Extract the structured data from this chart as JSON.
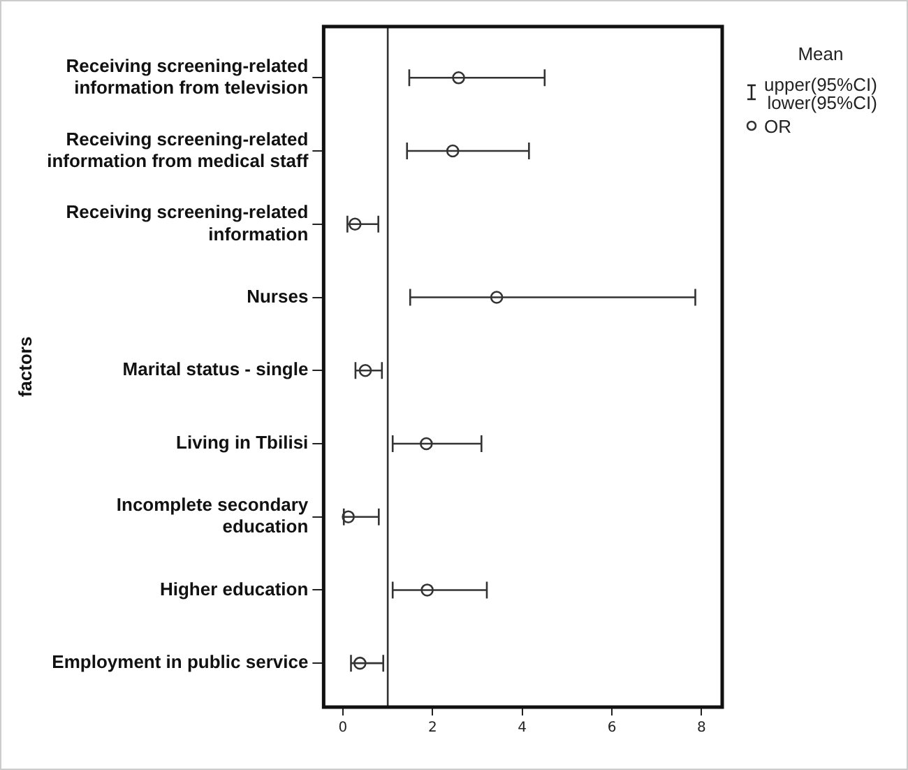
{
  "chart_data": {
    "type": "scatter",
    "orientation": "horizontal",
    "ylabel": "factors",
    "legend_title": "Mean",
    "legend": "top right",
    "grid": false,
    "marker": "circle",
    "categories": [
      "Receiving screening-related\ninformation from television",
      "Receiving screening-related\ninformation from medical staff",
      "Receiving screening-related\ninformation",
      "Nurses",
      "Marital status - single",
      "Living in Tbilisi",
      "Incomplete secondary\neducation",
      "Higher education",
      "Employment in public service"
    ],
    "series": [
      {
        "name": "OR",
        "color": "#333333",
        "values": [
          2.58,
          2.45,
          0.27,
          3.43,
          0.5,
          1.86,
          0.12,
          1.88,
          0.38
        ],
        "errors": [
          [
            1.48,
            4.5
          ],
          [
            1.43,
            4.15
          ],
          [
            0.1,
            0.79
          ],
          [
            1.5,
            7.86
          ],
          [
            0.28,
            0.87
          ],
          [
            1.11,
            3.09
          ],
          [
            0.02,
            0.8
          ],
          [
            1.11,
            3.21
          ],
          [
            0.18,
            0.9
          ]
        ]
      }
    ],
    "annotations": [
      "upper(95%CI)",
      "lower(95%CI)"
    ],
    "ref_lines": [
      {
        "axis": "x",
        "value": 1,
        "color": "#333333"
      }
    ],
    "xlim": [
      -0.43,
      8.46
    ],
    "xticks": [
      0,
      2,
      4,
      6,
      8
    ]
  }
}
